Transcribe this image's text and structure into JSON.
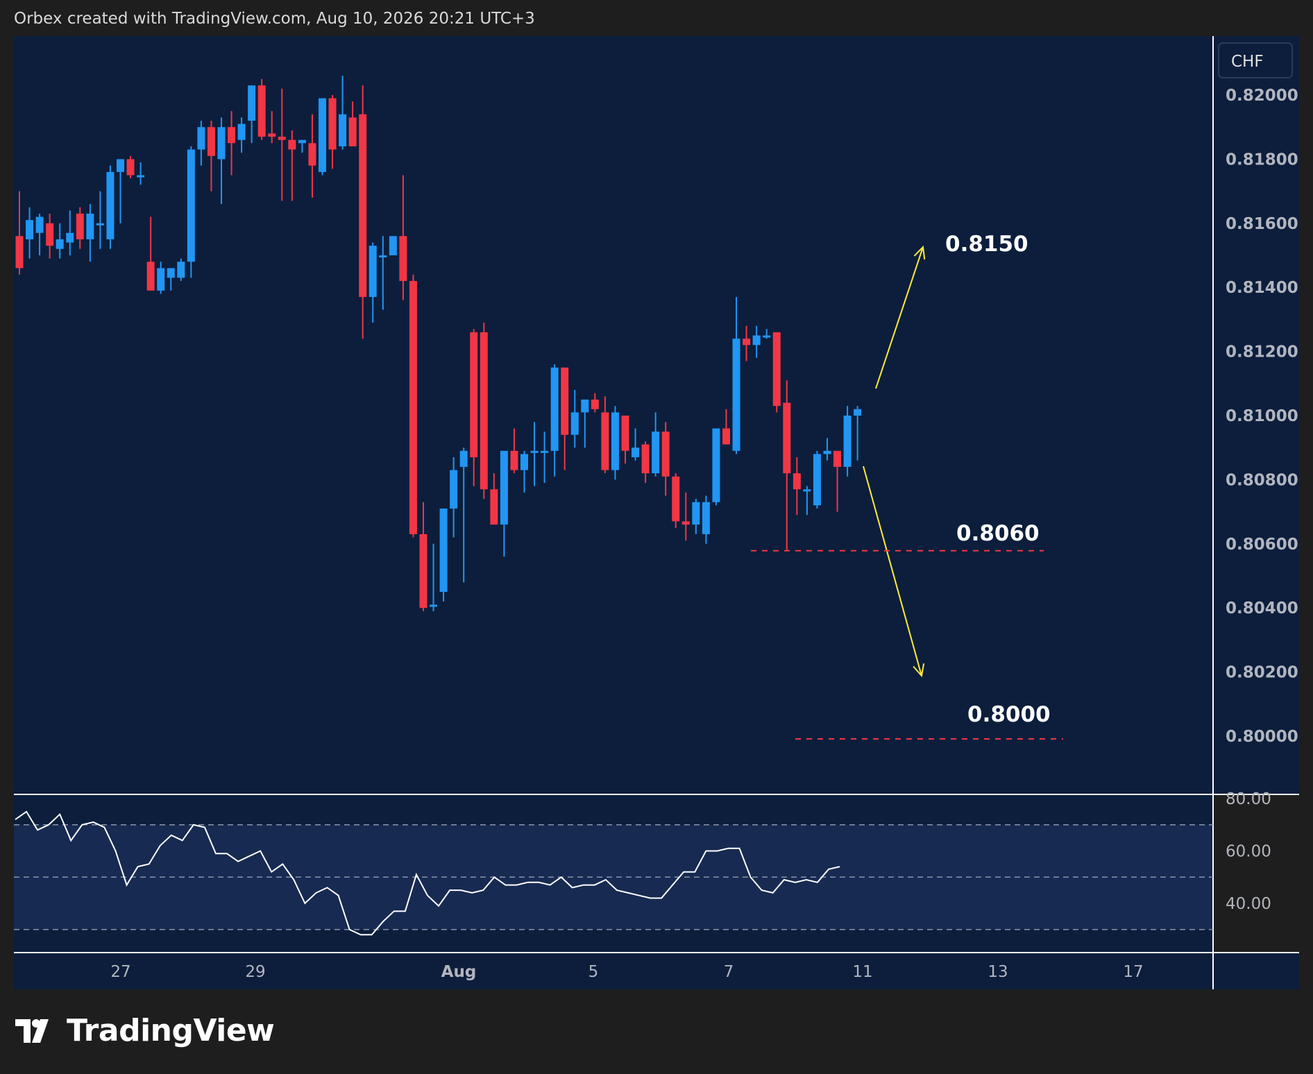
{
  "header": {
    "text": "Orbex created with TradingView.com, Aug 10, 2026 20:21 UTC+3"
  },
  "brand": {
    "name": "TradingView",
    "logo_icon": "tradingview-logo-icon"
  },
  "colors": {
    "background": "#0c1e3c",
    "frame": "#1e1e1e",
    "up": "#2196f3",
    "down": "#f23645",
    "target_arrow": "#ffeb3b",
    "level_line": "#f23645",
    "oscillator_line": "#ffffff",
    "oscillator_band": "#172a52"
  },
  "chart_data": {
    "type": "candlestick",
    "symbol_currency": "CHF",
    "price_axis": {
      "ticks": [
        "0.82000",
        "0.81800",
        "0.81600",
        "0.81400",
        "0.81200",
        "0.81000",
        "0.80800",
        "0.80600",
        "0.80400",
        "0.80200",
        "0.80000"
      ],
      "ylim": [
        0.7975,
        0.8218
      ]
    },
    "time_axis": {
      "ticks": [
        "27",
        "29",
        "Aug",
        "5",
        "7",
        "11",
        "13",
        "17"
      ]
    },
    "candles": [
      [
        0.8156,
        0.817,
        0.8144,
        0.8146
      ],
      [
        0.8155,
        0.8165,
        0.8149,
        0.8161
      ],
      [
        0.8157,
        0.8163,
        0.815,
        0.8162
      ],
      [
        0.816,
        0.8163,
        0.8149,
        0.8153
      ],
      [
        0.8152,
        0.816,
        0.8149,
        0.8155
      ],
      [
        0.8154,
        0.8164,
        0.815,
        0.8157
      ],
      [
        0.8163,
        0.8165,
        0.8152,
        0.8155
      ],
      [
        0.8155,
        0.8166,
        0.8148,
        0.8163
      ],
      [
        0.816,
        0.817,
        0.8152,
        0.816
      ],
      [
        0.8155,
        0.8178,
        0.8152,
        0.8176
      ],
      [
        0.8176,
        0.818,
        0.816,
        0.818
      ],
      [
        0.818,
        0.8181,
        0.8174,
        0.8175
      ],
      [
        0.8175,
        0.8179,
        0.8172,
        0.8175
      ],
      [
        0.8148,
        0.8162,
        0.8139,
        0.8139
      ],
      [
        0.8139,
        0.8148,
        0.8138,
        0.8146
      ],
      [
        0.8143,
        0.8146,
        0.8139,
        0.8146
      ],
      [
        0.8143,
        0.8149,
        0.8142,
        0.8148
      ],
      [
        0.8148,
        0.8184,
        0.8143,
        0.8183
      ],
      [
        0.8183,
        0.8192,
        0.8178,
        0.819
      ],
      [
        0.819,
        0.8192,
        0.817,
        0.8181
      ],
      [
        0.818,
        0.8193,
        0.8166,
        0.819
      ],
      [
        0.819,
        0.8195,
        0.8175,
        0.8185
      ],
      [
        0.8186,
        0.8193,
        0.8182,
        0.8191
      ],
      [
        0.8192,
        0.8203,
        0.8185,
        0.8203
      ],
      [
        0.8203,
        0.8205,
        0.8186,
        0.8187
      ],
      [
        0.8188,
        0.8195,
        0.8185,
        0.8187
      ],
      [
        0.8187,
        0.8202,
        0.8167,
        0.8186
      ],
      [
        0.8186,
        0.8189,
        0.8167,
        0.8183
      ],
      [
        0.8185,
        0.8186,
        0.8182,
        0.8186
      ],
      [
        0.8185,
        0.8194,
        0.8168,
        0.8178
      ],
      [
        0.8176,
        0.8199,
        0.8175,
        0.8199
      ],
      [
        0.8199,
        0.82,
        0.8177,
        0.8183
      ],
      [
        0.8184,
        0.8206,
        0.8183,
        0.8194
      ],
      [
        0.8193,
        0.8198,
        0.8184,
        0.8184
      ],
      [
        0.8194,
        0.8203,
        0.8124,
        0.8137
      ],
      [
        0.8137,
        0.8154,
        0.8129,
        0.8153
      ],
      [
        0.815,
        0.8156,
        0.8133,
        0.815
      ],
      [
        0.815,
        0.8156,
        0.815,
        0.8156
      ],
      [
        0.8156,
        0.8175,
        0.8136,
        0.8142
      ],
      [
        0.8142,
        0.8144,
        0.8062,
        0.8063
      ],
      [
        0.8063,
        0.8073,
        0.8039,
        0.804
      ],
      [
        0.8041,
        0.806,
        0.8039,
        0.8041
      ],
      [
        0.8045,
        0.807,
        0.8042,
        0.8071
      ],
      [
        0.8071,
        0.8087,
        0.8062,
        0.8083
      ],
      [
        0.8084,
        0.809,
        0.8048,
        0.8089
      ],
      [
        0.8126,
        0.8127,
        0.8078,
        0.8087
      ],
      [
        0.8126,
        0.8129,
        0.8074,
        0.8077
      ],
      [
        0.8077,
        0.8082,
        0.8067,
        0.8066
      ],
      [
        0.8066,
        0.8089,
        0.8056,
        0.8089
      ],
      [
        0.8089,
        0.8096,
        0.8082,
        0.8083
      ],
      [
        0.8083,
        0.8089,
        0.8076,
        0.8088
      ],
      [
        0.8089,
        0.8098,
        0.8078,
        0.8089
      ],
      [
        0.8089,
        0.8095,
        0.8079,
        0.8089
      ],
      [
        0.8089,
        0.8116,
        0.8081,
        0.8115
      ],
      [
        0.8115,
        0.8114,
        0.8083,
        0.8094
      ],
      [
        0.8094,
        0.8108,
        0.809,
        0.8101
      ],
      [
        0.8101,
        0.8105,
        0.809,
        0.8105
      ],
      [
        0.8105,
        0.8107,
        0.8101,
        0.8102
      ],
      [
        0.8101,
        0.8106,
        0.8082,
        0.8083
      ],
      [
        0.8083,
        0.8103,
        0.808,
        0.8101
      ],
      [
        0.81,
        0.81,
        0.8085,
        0.8089
      ],
      [
        0.8087,
        0.8096,
        0.8086,
        0.809
      ],
      [
        0.8091,
        0.8092,
        0.8079,
        0.8082
      ],
      [
        0.8082,
        0.8101,
        0.8081,
        0.8095
      ],
      [
        0.8095,
        0.8098,
        0.8075,
        0.8081
      ],
      [
        0.8081,
        0.8082,
        0.8065,
        0.8067
      ],
      [
        0.8067,
        0.8076,
        0.8061,
        0.8066
      ],
      [
        0.8066,
        0.8074,
        0.8063,
        0.8073
      ],
      [
        0.8063,
        0.8075,
        0.806,
        0.8073
      ],
      [
        0.8073,
        0.8096,
        0.8072,
        0.8096
      ],
      [
        0.8096,
        0.8102,
        0.8091,
        0.8091
      ],
      [
        0.8089,
        0.8137,
        0.8088,
        0.8124
      ],
      [
        0.8124,
        0.8128,
        0.8117,
        0.8122
      ],
      [
        0.8122,
        0.8128,
        0.8118,
        0.8125
      ],
      [
        0.8125,
        0.8127,
        0.8124,
        0.8125
      ],
      [
        0.8126,
        0.8126,
        0.8101,
        0.8103
      ],
      [
        0.8104,
        0.8111,
        0.8058,
        0.8082
      ],
      [
        0.8082,
        0.8087,
        0.8069,
        0.8077
      ],
      [
        0.8077,
        0.8078,
        0.8069,
        0.8077
      ],
      [
        0.8072,
        0.8089,
        0.8071,
        0.8088
      ],
      [
        0.8088,
        0.8093,
        0.8086,
        0.8089
      ],
      [
        0.8089,
        0.8089,
        0.807,
        0.8084
      ],
      [
        0.8084,
        0.8103,
        0.8081,
        0.81
      ],
      [
        0.81,
        0.8103,
        0.8086,
        0.8102
      ]
    ],
    "oscillator": {
      "ticks": [
        "80.00",
        "60.00",
        "40.00"
      ],
      "ylim": [
        27,
        83
      ],
      "band": [
        30,
        70
      ],
      "midline": 50,
      "values": [
        72,
        75,
        68,
        70,
        74,
        64,
        70,
        71,
        69,
        60,
        47,
        54,
        55,
        62,
        66,
        64,
        70,
        69,
        59,
        59,
        56,
        58,
        60,
        52,
        55,
        49,
        40,
        44,
        46,
        43,
        30,
        28,
        28,
        33,
        37,
        37,
        51,
        43,
        39,
        45,
        45,
        44,
        45,
        50,
        47,
        47,
        48,
        48,
        47,
        50,
        46,
        47,
        47,
        49,
        45,
        44,
        43,
        42,
        42,
        47,
        52,
        52,
        60,
        60,
        61,
        61,
        50,
        45,
        44,
        49,
        48,
        49,
        48,
        53,
        54
      ],
      "last_point_index": 74
    },
    "annotations": {
      "up_target": {
        "label": "0.8150",
        "price": 0.815
      },
      "down_target": {
        "label": "0.8000",
        "price": 0.8
      },
      "support": {
        "label": "0.8060",
        "price": 0.806
      }
    }
  }
}
